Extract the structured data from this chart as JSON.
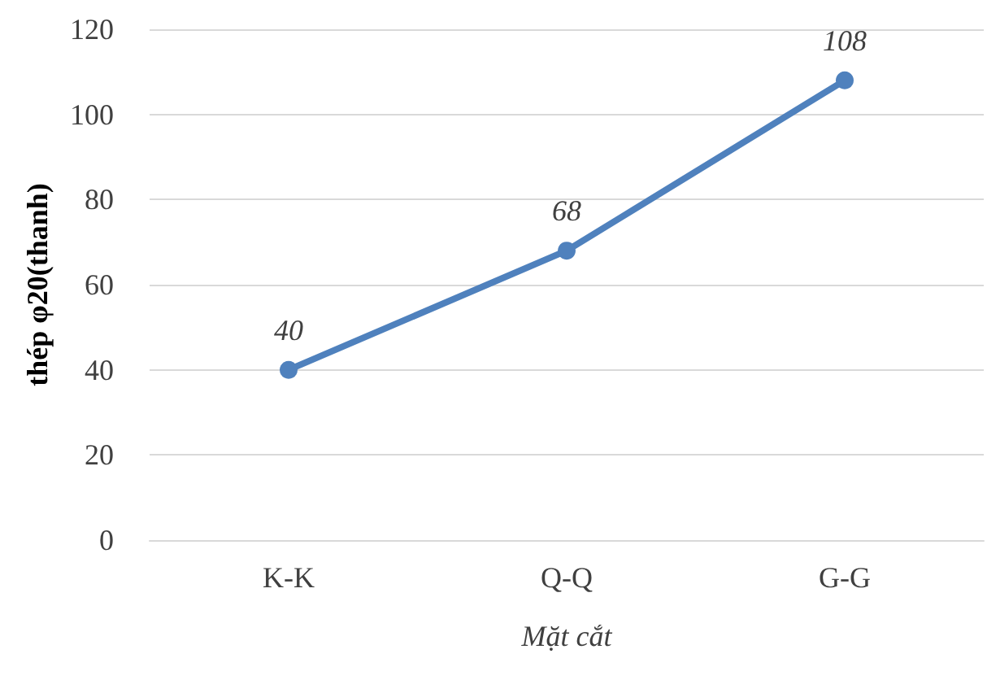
{
  "chart_data": {
    "type": "line",
    "xlabel": "Mặt cắt",
    "ylabel": "thép φ20(thanh)",
    "categories": [
      "K-K",
      "Q-Q",
      "G-G"
    ],
    "series": [
      {
        "color": "#4f81bd",
        "values": [
          40,
          68,
          108
        ]
      }
    ],
    "ylim": [
      0,
      120
    ],
    "yticks": [
      0,
      20,
      40,
      60,
      80,
      100,
      120
    ],
    "grid": "y",
    "marker": "circle",
    "line_style": "solid",
    "data_labels": true
  }
}
